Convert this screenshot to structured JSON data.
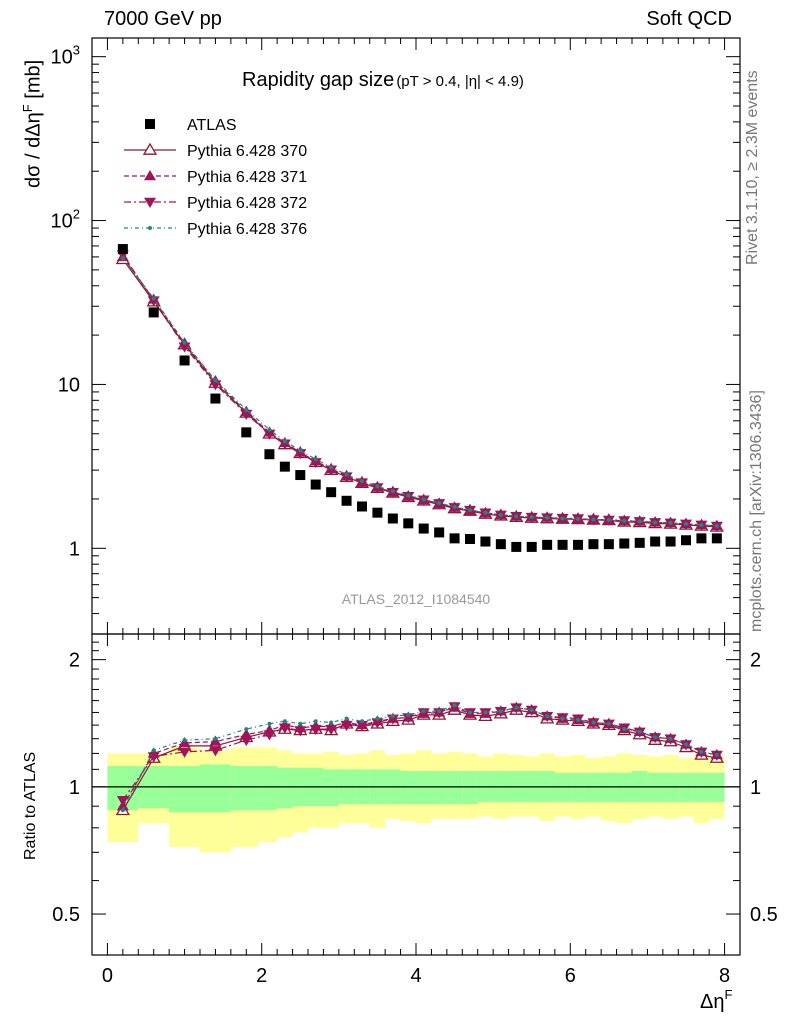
{
  "header": {
    "energy": "7000 GeV pp",
    "category": "Soft QCD"
  },
  "side_labels": {
    "rivet": "Rivet 3.1.10, ≥ 2.3M events",
    "mcplots": "mcplots.cern.ch [arXiv:1306.3436]"
  },
  "chart_data": {
    "type": "line",
    "title_main": "Rapidity gap size",
    "title_sub": "(pT > 0.4, |η| < 4.9)",
    "ylabel": "dσ / dΔη^F [mb]",
    "ylabel_ratio": "Ratio to ATLAS",
    "xlabel": "Δη^F",
    "analysis": "ATLAS_2012_I1084540",
    "xlim": [
      -0.2,
      8.2
    ],
    "ylim": [
      0.3,
      1300
    ],
    "yscale": "log",
    "ratio_ylim": [
      0.4,
      2.3
    ],
    "ratio_yscale": "log",
    "x_ticks": [
      "0",
      "2",
      "4",
      "6",
      "8"
    ],
    "y_ticks": [
      "1",
      "10",
      "10^2",
      "10^3"
    ],
    "ratio_ticks": [
      "0.5",
      "1",
      "2"
    ],
    "legend_position": "top-left",
    "x": [
      0.2,
      0.6,
      1.0,
      1.4,
      1.8,
      2.1,
      2.3,
      2.5,
      2.7,
      2.9,
      3.1,
      3.3,
      3.5,
      3.7,
      3.9,
      4.1,
      4.3,
      4.5,
      4.7,
      4.9,
      5.1,
      5.3,
      5.5,
      5.7,
      5.9,
      6.1,
      6.3,
      6.5,
      6.7,
      6.9,
      7.1,
      7.3,
      7.5,
      7.7,
      7.9
    ],
    "series": [
      {
        "name": "ATLAS",
        "color": "#000000",
        "marker": "square",
        "values": [
          67,
          27.5,
          14,
          8.2,
          5.1,
          3.75,
          3.15,
          2.8,
          2.45,
          2.2,
          1.95,
          1.8,
          1.65,
          1.52,
          1.42,
          1.32,
          1.25,
          1.15,
          1.14,
          1.1,
          1.06,
          1.02,
          1.02,
          1.05,
          1.05,
          1.05,
          1.06,
          1.06,
          1.07,
          1.08,
          1.1,
          1.1,
          1.12,
          1.15,
          1.15
        ]
      },
      {
        "name": "Pythia 6.428 370",
        "color": "#8b1a2b",
        "marker": "open-triangle-up",
        "dash": "",
        "values": [
          58,
          32,
          17.5,
          10.2,
          6.7,
          5.0,
          4.3,
          3.8,
          3.35,
          3.0,
          2.72,
          2.5,
          2.33,
          2.18,
          2.05,
          1.95,
          1.85,
          1.75,
          1.69,
          1.62,
          1.58,
          1.55,
          1.53,
          1.52,
          1.51,
          1.5,
          1.49,
          1.48,
          1.45,
          1.44,
          1.42,
          1.41,
          1.39,
          1.37,
          1.35
        ]
      },
      {
        "name": "Pythia 6.428 371",
        "color": "#a0145a",
        "marker": "triangle-up",
        "dash": "5,3",
        "values": [
          60,
          33,
          17.8,
          10.5,
          6.8,
          5.1,
          4.4,
          3.85,
          3.4,
          3.05,
          2.76,
          2.52,
          2.36,
          2.2,
          2.07,
          1.97,
          1.87,
          1.77,
          1.7,
          1.64,
          1.6,
          1.57,
          1.55,
          1.54,
          1.52,
          1.51,
          1.5,
          1.49,
          1.47,
          1.46,
          1.44,
          1.43,
          1.41,
          1.39,
          1.37
        ]
      },
      {
        "name": "Pythia 6.428 372",
        "color": "#a0145a",
        "marker": "triangle-down",
        "dash": "7,3,2,3",
        "values": [
          62,
          32.5,
          17,
          10,
          6.6,
          5.0,
          4.35,
          3.8,
          3.35,
          3.02,
          2.74,
          2.52,
          2.35,
          2.2,
          2.08,
          1.98,
          1.88,
          1.78,
          1.71,
          1.65,
          1.6,
          1.57,
          1.55,
          1.54,
          1.53,
          1.52,
          1.5,
          1.49,
          1.48,
          1.46,
          1.44,
          1.43,
          1.41,
          1.39,
          1.37
        ]
      },
      {
        "name": "Pythia 6.428 376",
        "color": "#1a8a7a",
        "marker": "dot",
        "dash": "4,3,1,3",
        "values": [
          59,
          33.5,
          18,
          10.6,
          7.0,
          5.3,
          4.5,
          3.95,
          3.5,
          3.12,
          2.82,
          2.57,
          2.39,
          2.23,
          2.1,
          1.99,
          1.89,
          1.79,
          1.71,
          1.65,
          1.6,
          1.57,
          1.55,
          1.54,
          1.52,
          1.51,
          1.5,
          1.49,
          1.47,
          1.46,
          1.44,
          1.43,
          1.41,
          1.39,
          1.37
        ]
      }
    ],
    "ratio_series": [
      {
        "name": "Pythia 6.428 370",
        "values": [
          0.88,
          1.17,
          1.25,
          1.25,
          1.31,
          1.35,
          1.37,
          1.36,
          1.37,
          1.36,
          1.41,
          1.39,
          1.41,
          1.43,
          1.44,
          1.48,
          1.48,
          1.52,
          1.48,
          1.47,
          1.49,
          1.52,
          1.5,
          1.45,
          1.44,
          1.43,
          1.41,
          1.4,
          1.36,
          1.33,
          1.29,
          1.28,
          1.24,
          1.19,
          1.17
        ]
      },
      {
        "name": "Pythia 6.428 371",
        "values": [
          0.9,
          1.2,
          1.27,
          1.28,
          1.33,
          1.36,
          1.4,
          1.38,
          1.39,
          1.39,
          1.42,
          1.4,
          1.43,
          1.45,
          1.46,
          1.49,
          1.5,
          1.54,
          1.49,
          1.49,
          1.51,
          1.54,
          1.52,
          1.47,
          1.45,
          1.44,
          1.42,
          1.41,
          1.37,
          1.35,
          1.31,
          1.3,
          1.26,
          1.21,
          1.19
        ]
      },
      {
        "name": "Pythia 6.428 372",
        "values": [
          0.93,
          1.18,
          1.21,
          1.22,
          1.29,
          1.33,
          1.38,
          1.36,
          1.37,
          1.37,
          1.4,
          1.4,
          1.42,
          1.45,
          1.46,
          1.5,
          1.5,
          1.55,
          1.5,
          1.5,
          1.51,
          1.54,
          1.52,
          1.47,
          1.46,
          1.45,
          1.42,
          1.41,
          1.38,
          1.35,
          1.31,
          1.3,
          1.26,
          1.21,
          1.19
        ]
      },
      {
        "name": "Pythia 6.428 376",
        "values": [
          0.88,
          1.22,
          1.29,
          1.3,
          1.37,
          1.41,
          1.43,
          1.41,
          1.43,
          1.42,
          1.45,
          1.43,
          1.45,
          1.47,
          1.48,
          1.51,
          1.51,
          1.56,
          1.5,
          1.5,
          1.51,
          1.54,
          1.52,
          1.47,
          1.45,
          1.44,
          1.42,
          1.41,
          1.37,
          1.35,
          1.31,
          1.3,
          1.26,
          1.21,
          1.19
        ]
      }
    ],
    "ratio_bands": {
      "yellow_low": [
        0.74,
        0.82,
        0.72,
        0.7,
        0.72,
        0.74,
        0.76,
        0.78,
        0.8,
        0.8,
        0.82,
        0.82,
        0.8,
        0.84,
        0.83,
        0.82,
        0.84,
        0.84,
        0.84,
        0.85,
        0.84,
        0.85,
        0.85,
        0.83,
        0.85,
        0.84,
        0.85,
        0.83,
        0.82,
        0.84,
        0.85,
        0.84,
        0.85,
        0.82,
        0.84
      ],
      "yellow_high": [
        1.2,
        1.2,
        1.24,
        1.22,
        1.24,
        1.24,
        1.22,
        1.2,
        1.2,
        1.21,
        1.19,
        1.2,
        1.22,
        1.19,
        1.2,
        1.22,
        1.2,
        1.21,
        1.2,
        1.18,
        1.2,
        1.19,
        1.18,
        1.2,
        1.18,
        1.19,
        1.17,
        1.18,
        1.2,
        1.19,
        1.18,
        1.19,
        1.17,
        1.19,
        1.18
      ],
      "green_low": [
        0.88,
        0.89,
        0.87,
        0.87,
        0.88,
        0.88,
        0.89,
        0.9,
        0.9,
        0.9,
        0.91,
        0.91,
        0.91,
        0.91,
        0.91,
        0.91,
        0.91,
        0.91,
        0.91,
        0.92,
        0.92,
        0.92,
        0.92,
        0.92,
        0.92,
        0.92,
        0.92,
        0.92,
        0.92,
        0.92,
        0.92,
        0.92,
        0.92,
        0.92,
        0.92
      ],
      "green_high": [
        1.12,
        1.12,
        1.12,
        1.13,
        1.12,
        1.12,
        1.11,
        1.11,
        1.11,
        1.1,
        1.1,
        1.1,
        1.1,
        1.1,
        1.09,
        1.09,
        1.09,
        1.09,
        1.09,
        1.09,
        1.09,
        1.09,
        1.09,
        1.09,
        1.08,
        1.08,
        1.08,
        1.08,
        1.08,
        1.09,
        1.08,
        1.08,
        1.08,
        1.08,
        1.08
      ]
    }
  }
}
